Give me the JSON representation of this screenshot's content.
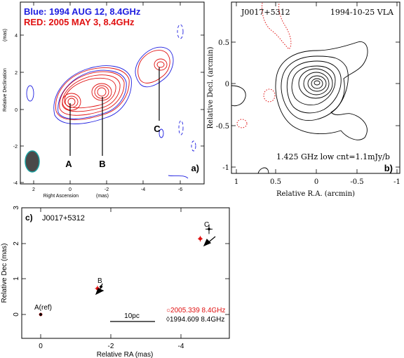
{
  "panel_a": {
    "legend_blue": "Blue: 1994 AUG 12, 8.4GHz",
    "legend_red": "RED: 2005 MAY 3, 8.4GHz",
    "label_A": "A",
    "label_B": "B",
    "label_C": "C",
    "tag": "a)",
    "xlabel": "Right Ascension",
    "xunit": "(mas)",
    "ylabel": "Relative Declination",
    "yunit": "(mas)",
    "xticks": [
      "2",
      "0",
      "-2",
      "-4",
      "-6"
    ],
    "yticks": [
      "4",
      "2",
      "0",
      "-2",
      "-4"
    ],
    "colors": {
      "blue": "#1f1fe0",
      "red": "#e01010",
      "beam": "#4a4a4a",
      "beam_edge": "#1aa0a0"
    }
  },
  "panel_b": {
    "source": "J0017+5312",
    "date": "1994-10-25 VLA",
    "caption": "1.425 GHz low cnt=1.1mJy/b",
    "tag": "b)",
    "xlabel": "Relative R.A. (arcmin)",
    "ylabel": "Relative Decl. (arcmin)",
    "xticks": [
      "1",
      "0.5",
      "0",
      "-0.5",
      "-1"
    ],
    "yticks": [
      "0.5",
      "0",
      "-0.5",
      "-1"
    ]
  },
  "panel_c": {
    "tag": "c)",
    "source": "J0017+5312",
    "label_A": "A(ref)",
    "label_B": "B",
    "label_C": "C",
    "scalebar": "10pc",
    "legend_red": "○2005.339  8.4GHz",
    "legend_black": "◊1994.609  8.4GHz",
    "xlabel": "Relative RA  (mas)",
    "ylabel": "Relative Dec  (mas)",
    "xticks": [
      "0",
      "-2",
      "-4"
    ],
    "yticks": [
      "0",
      "1",
      "2",
      "3"
    ]
  },
  "chart_data": {
    "type": "scatter",
    "title": "",
    "xlabel": "Relative RA (mas)",
    "ylabel": "Relative Dec (mas)",
    "xlim": [
      0.6,
      -5.5
    ],
    "ylim": [
      -0.4,
      3.7
    ],
    "series": [
      {
        "name": "2005.339 8.4GHz",
        "x": [
          0.0,
          -1.62,
          -4.55
        ],
        "y": [
          0.0,
          0.73,
          2.13
        ],
        "labels": [
          "A(ref)",
          "B",
          "C"
        ]
      },
      {
        "name": "1994.609 8.4GHz",
        "x": [
          0.0,
          -1.72,
          -4.8
        ],
        "y": [
          0.0,
          0.78,
          2.4
        ],
        "labels": [
          "A(ref)",
          "B",
          "C"
        ]
      }
    ]
  }
}
